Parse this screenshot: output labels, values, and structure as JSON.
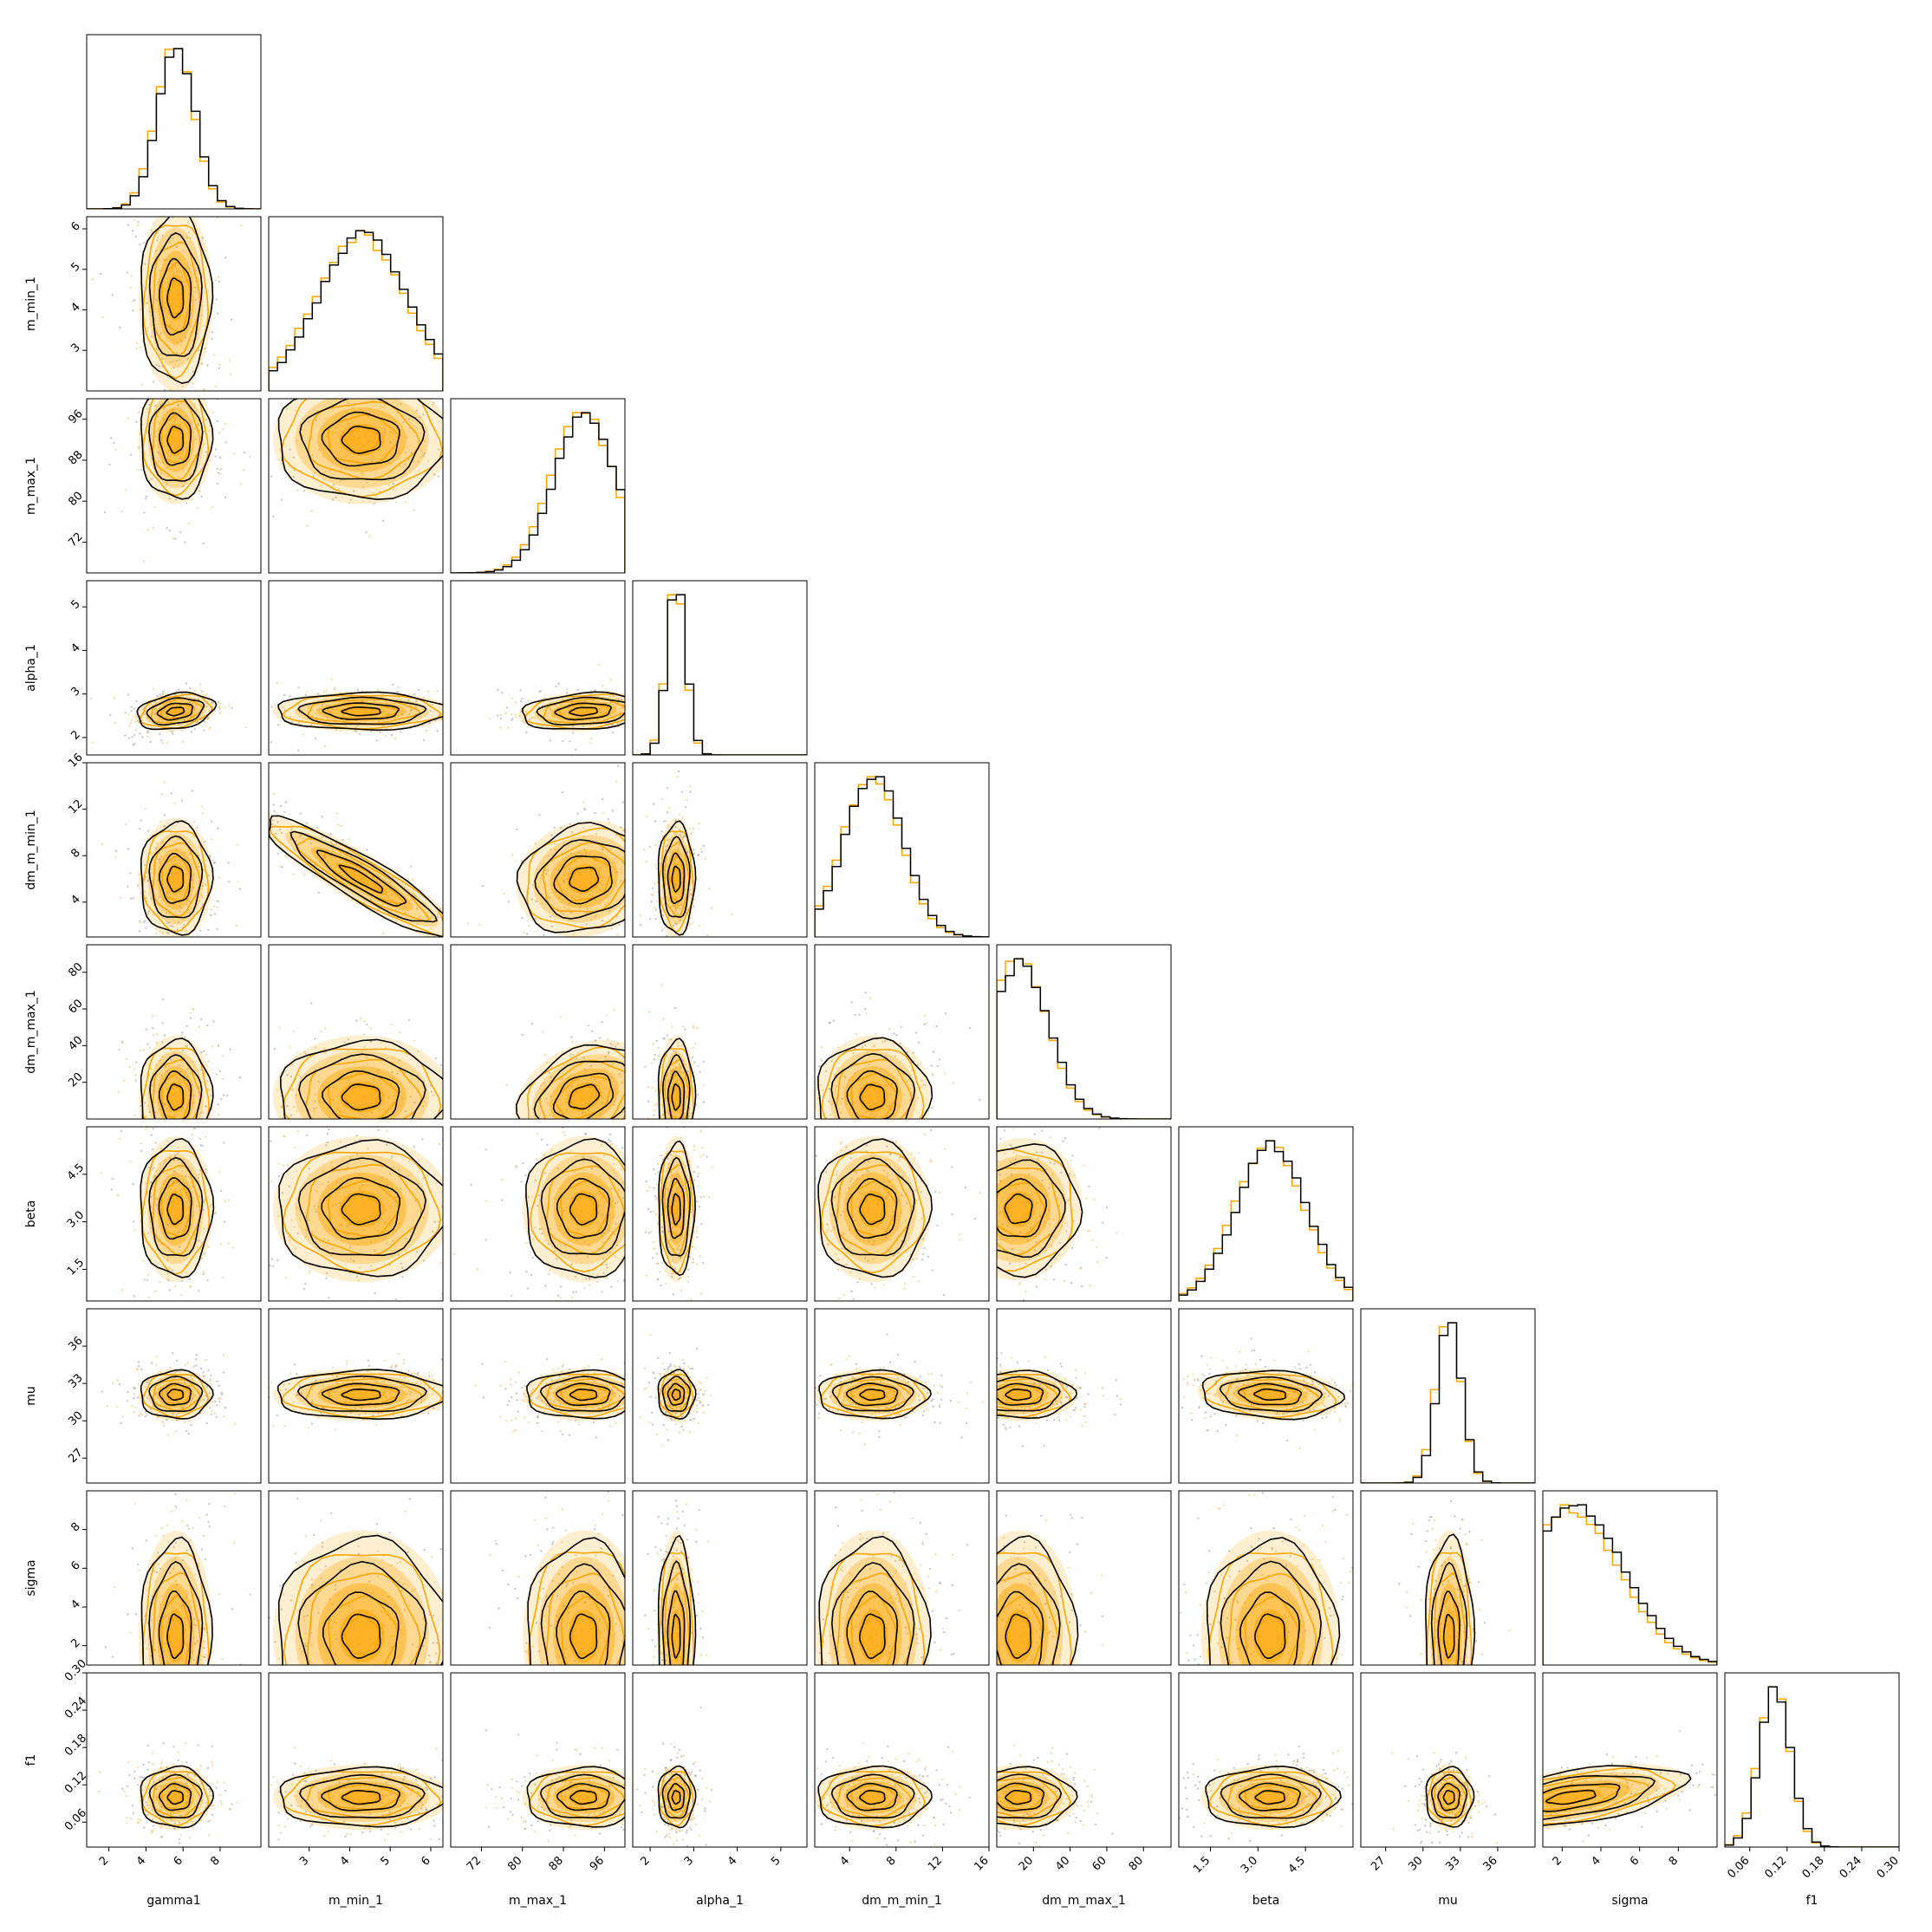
{
  "chart_data": {
    "type": "corner",
    "parameters": [
      {
        "label": "gamma1",
        "range": [
          0.8,
          10.2
        ],
        "mean": 5.6,
        "sd": 1.0,
        "ticks": [
          2,
          4,
          6,
          8
        ]
      },
      {
        "label": "m_min_1",
        "range": [
          2.0,
          6.3
        ],
        "mean": 4.3,
        "sd": 1.1,
        "ticks": [
          3,
          4,
          5,
          6
        ]
      },
      {
        "label": "m_max_1",
        "range": [
          66,
          100
        ],
        "mean": 92,
        "sd": 6,
        "ticks": [
          72,
          80,
          88,
          96
        ]
      },
      {
        "label": "alpha_1",
        "range": [
          1.6,
          5.6
        ],
        "mean": 2.6,
        "sd": 0.22,
        "ticks": [
          2,
          3,
          4,
          5
        ]
      },
      {
        "label": "dm_m_min_1",
        "range": [
          1.0,
          16.0
        ],
        "mean": 6.0,
        "sd": 2.5,
        "ticks": [
          4,
          8,
          12,
          16
        ]
      },
      {
        "label": "dm_m_max_1",
        "range": [
          0,
          95
        ],
        "mean": 12,
        "sd": 16,
        "ticks": [
          20,
          40,
          60,
          80
        ]
      },
      {
        "label": "beta",
        "range": [
          0.5,
          6.0
        ],
        "mean": 3.4,
        "sd": 1.1,
        "ticks": [
          1.5,
          3.0,
          4.5
        ]
      },
      {
        "label": "mu",
        "range": [
          25,
          39
        ],
        "mean": 32.1,
        "sd": 1.0,
        "ticks": [
          27,
          30,
          33,
          36
        ]
      },
      {
        "label": "sigma",
        "range": [
          1.0,
          10.0
        ],
        "mean": 2.5,
        "sd": 2.6,
        "ticks": [
          2,
          4,
          6,
          8
        ]
      },
      {
        "label": "f1",
        "range": [
          0.02,
          0.3
        ],
        "mean": 0.1,
        "sd": 0.025,
        "ticks": [
          0.06,
          0.12,
          0.18,
          0.24,
          0.3
        ]
      }
    ],
    "tick_text": {
      "gamma1": [
        "2",
        "4",
        "6",
        "8"
      ],
      "m_min_1": [
        "3",
        "4",
        "5",
        "6"
      ],
      "m_max_1": [
        "72",
        "80",
        "88",
        "96"
      ],
      "alpha_1": [
        "2",
        "3",
        "4",
        "5"
      ],
      "dm_m_min_1": [
        "4",
        "8",
        "12",
        "16"
      ],
      "dm_m_max_1": [
        "20",
        "40",
        "60",
        "80"
      ],
      "beta": [
        "1.5",
        "3.0",
        "4.5"
      ],
      "mu": [
        "27",
        "30",
        "33",
        "36"
      ],
      "sigma": [
        "2",
        "4",
        "6",
        "8"
      ],
      "f1": [
        "0.06",
        "0.12",
        "0.18",
        "0.24",
        "0.30"
      ]
    },
    "series": [
      {
        "color": "#ffa500"
      },
      {
        "color": "#000000"
      }
    ],
    "correlations": {
      "m_min_1|dm_m_min_1": -0.92,
      "m_max_1|dm_m_max_1": 0.55,
      "m_max_1|alpha_1": 0.2,
      "sigma|f1": 0.5,
      "gamma1|alpha_1": 0.3,
      "dm_m_max_1|beta": -0.2,
      "beta|mu": -0.15,
      "dm_m_min_1|m_max_1": 0.35
    }
  }
}
